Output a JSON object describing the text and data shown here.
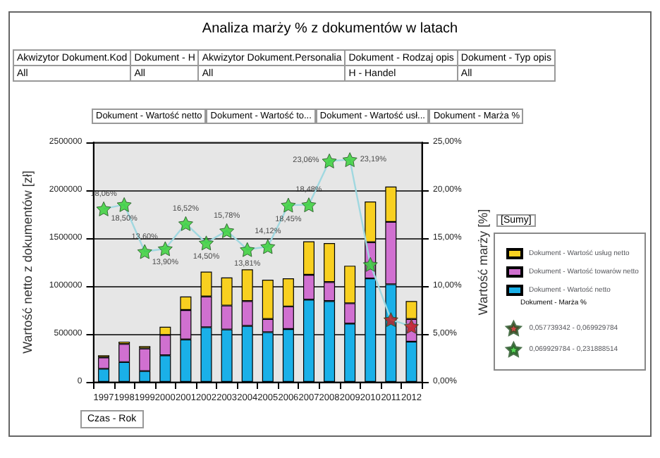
{
  "chart_data": {
    "type": "bar",
    "title": "Analiza marży % z dokumentów w latach",
    "xlabel": "Czas - Rok",
    "ylabel": "Wartość netto z dokumentów [zł]",
    "y2label": "Wartość marży [%]",
    "legend_title": "[Sumy]",
    "legend": "right",
    "grid": "y",
    "stacked": true,
    "categories": [
      "1997",
      "1998",
      "1999",
      "2000",
      "2001",
      "2002",
      "2003",
      "2004",
      "2005",
      "2006",
      "2007",
      "2008",
      "2009",
      "2010",
      "2011",
      "2012"
    ],
    "series": [
      {
        "name": "Dokument - Wartość netto",
        "color": "#1ab0e8",
        "values": [
          137000,
          207000,
          113000,
          278000,
          443000,
          571000,
          547000,
          585000,
          519000,
          552000,
          859000,
          844000,
          608000,
          1080000,
          1019000,
          420000
        ]
      },
      {
        "name": "Dokument - Wartość towarów netto",
        "color": "#d070d0",
        "values": [
          118000,
          189000,
          236000,
          212000,
          307000,
          320000,
          250000,
          259000,
          137000,
          236000,
          259000,
          198000,
          213000,
          378000,
          651000,
          236000
        ]
      },
      {
        "name": "Dokument - Wartość usług netto",
        "color": "#f8d020",
        "values": [
          23000,
          24000,
          24000,
          85000,
          141000,
          260000,
          293000,
          331000,
          410000,
          292000,
          349000,
          406000,
          391000,
          424000,
          368000,
          188000
        ]
      },
      {
        "type": "line",
        "axis": "y2",
        "color": "#a0d8e0",
        "marker": "none",
        "line_style": "solid",
        "values": [
          18.06,
          18.5,
          13.6,
          13.9,
          16.52,
          14.5,
          15.78,
          13.81,
          14.12,
          18.45,
          18.48,
          23.06,
          23.19,
          12.26,
          6.5,
          5.8
        ]
      },
      {
        "name": "0,057739342 - 0,069929784",
        "type": "scatter",
        "axis": "y2",
        "color": "#c01818",
        "marker": "star",
        "values": [
          null,
          null,
          null,
          null,
          null,
          null,
          null,
          null,
          null,
          null,
          null,
          null,
          null,
          null,
          6.5,
          5.8
        ]
      },
      {
        "name": "0,069929784 - 0,231888514",
        "type": "scatter",
        "axis": "y2",
        "color": "#30d030",
        "marker": "star",
        "values": [
          18.06,
          18.5,
          13.6,
          13.9,
          16.52,
          14.5,
          15.78,
          13.81,
          14.12,
          18.45,
          18.48,
          23.06,
          23.19,
          12.26,
          null,
          null
        ],
        "value_labels": [
          "18,06%",
          "18,50%",
          "13,60%",
          "13,90%",
          "16,52%",
          "14,50%",
          "15,78%",
          "13,81%",
          "14,12%",
          "18,45%",
          "18,48%",
          "23,06%",
          "23,19%",
          null,
          null,
          null
        ]
      }
    ],
    "ylim": [
      0,
      2500000
    ],
    "yticks": [
      0,
      500000,
      1000000,
      1500000,
      2000000,
      2500000
    ],
    "y2lim": [
      0,
      25
    ],
    "y2ticks": [
      {
        "value": 0,
        "label": "0,00%"
      },
      {
        "value": 5,
        "label": "5,00%"
      },
      {
        "value": 10,
        "label": "10,00%"
      },
      {
        "value": 15,
        "label": "15,00%"
      },
      {
        "value": 20,
        "label": "20,00%"
      },
      {
        "value": 25,
        "label": "25,00%"
      }
    ],
    "annotations": [
      "Akwizytor Dokument.Kod",
      "Dokument - H",
      "Akwizytor Dokument.Personalia",
      "Dokument - Rodzaj opis",
      "Dokument - Typ opis",
      "All",
      "All",
      "All",
      "H - Handel",
      "All",
      "Dokument - Wartość netto",
      "Dokument - Wartość to...",
      "Dokument - Wartość usł...",
      "Dokument - Marża %",
      "Dokument - Marża %"
    ]
  }
}
